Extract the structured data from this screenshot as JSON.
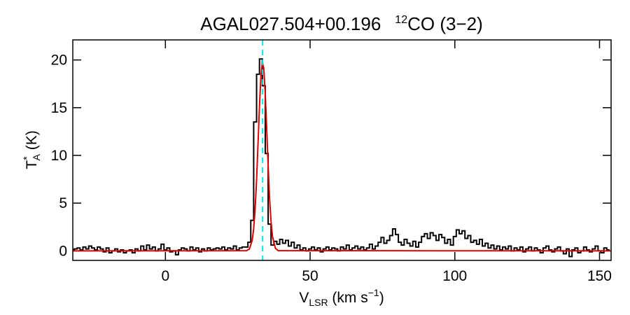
{
  "chart_data": {
    "type": "step",
    "title": {
      "source": "AGAL027.504+00.196",
      "line_sup": "12",
      "line": "CO (3−2)"
    },
    "xlabel": {
      "main": "V",
      "sub": "LSR",
      "unit": " (km s",
      "sup": "−1",
      "close": ")"
    },
    "ylabel": {
      "main": "T",
      "sup": "*",
      "sub": "A",
      "unit": " (K)"
    },
    "xlim": [
      -32,
      154
    ],
    "ylim": [
      -1,
      22.1
    ],
    "xticks": [
      0,
      50,
      100,
      150
    ],
    "yticks": [
      0,
      5,
      10,
      15,
      20
    ],
    "vline": {
      "x": 33.6,
      "color": "#00e5e5"
    },
    "series": [
      {
        "color": "#000000",
        "x": [
          -32,
          -31,
          -30,
          -29,
          -28,
          -27,
          -26,
          -25,
          -24,
          -23,
          -22,
          -21,
          -20,
          -19,
          -18,
          -17,
          -16,
          -15,
          -14,
          -13,
          -12,
          -11,
          -10,
          -9,
          -8,
          -7,
          -6,
          -5,
          -4,
          -3,
          -2,
          -1,
          0,
          1,
          2,
          3,
          4,
          5,
          6,
          7,
          8,
          9,
          10,
          11,
          12,
          13,
          14,
          15,
          16,
          17,
          18,
          19,
          20,
          21,
          22,
          23,
          24,
          25,
          26,
          27,
          28,
          29,
          30,
          31,
          32,
          33,
          34,
          35,
          36,
          37,
          38,
          39,
          40,
          41,
          42,
          43,
          44,
          45,
          46,
          47,
          48,
          49,
          50,
          51,
          52,
          53,
          54,
          55,
          56,
          57,
          58,
          59,
          60,
          61,
          62,
          63,
          64,
          65,
          66,
          67,
          68,
          69,
          70,
          71,
          72,
          73,
          74,
          75,
          76,
          77,
          78,
          79,
          80,
          81,
          82,
          83,
          84,
          85,
          86,
          87,
          88,
          89,
          90,
          91,
          92,
          93,
          94,
          95,
          96,
          97,
          98,
          99,
          100,
          101,
          102,
          103,
          104,
          105,
          106,
          107,
          108,
          109,
          110,
          111,
          112,
          113,
          114,
          115,
          116,
          117,
          118,
          119,
          120,
          121,
          122,
          123,
          124,
          125,
          126,
          127,
          128,
          129,
          130,
          131,
          132,
          133,
          134,
          135,
          136,
          137,
          138,
          139,
          140,
          141,
          142,
          143,
          144,
          145,
          146,
          147,
          148,
          149,
          150,
          151,
          152,
          153
        ],
        "values": [
          0.1,
          0.2,
          0.3,
          0.1,
          0.4,
          0.2,
          0.5,
          0.3,
          0.1,
          0.4,
          0.2,
          -0.1,
          0.3,
          -0.2,
          0.0,
          0.2,
          -0.1,
          0.1,
          -0.2,
          0.0,
          0.1,
          -0.2,
          0.2,
          0.0,
          0.5,
          0.1,
          0.6,
          0.2,
          0.4,
          0.0,
          0.2,
          0.7,
          0.1,
          0.3,
          -0.1,
          0.0,
          -0.4,
          0.1,
          0.3,
          0.2,
          0.0,
          0.4,
          0.1,
          0.3,
          -0.1,
          0.2,
          0.0,
          0.3,
          0.1,
          0.2,
          0.3,
          0.2,
          0.4,
          0.1,
          0.3,
          0.2,
          0.5,
          0.1,
          0.3,
          0.4,
          0.4,
          0.9,
          3.2,
          13.5,
          18.5,
          20.1,
          17.3,
          10.2,
          2.8,
          0.6,
          1.0,
          0.7,
          1.2,
          0.8,
          1.1,
          0.5,
          0.9,
          0.3,
          0.6,
          0.1,
          0.3,
          0.0,
          0.2,
          0.4,
          0.1,
          0.3,
          -0.1,
          0.2,
          0.4,
          0.1,
          0.3,
          0.2,
          0.0,
          0.4,
          0.2,
          0.6,
          0.1,
          0.3,
          0.5,
          0.2,
          0.4,
          0.1,
          0.3,
          0.7,
          0.2,
          0.5,
          0.9,
          1.4,
          0.8,
          1.1,
          1.6,
          2.3,
          1.7,
          0.9,
          0.6,
          1.2,
          0.8,
          0.5,
          1.0,
          0.4,
          0.9,
          1.5,
          1.8,
          1.3,
          1.9,
          1.6,
          1.1,
          1.7,
          1.4,
          0.8,
          1.2,
          0.6,
          1.5,
          2.2,
          1.8,
          2.1,
          1.3,
          1.6,
          0.9,
          1.1,
          0.7,
          1.2,
          0.5,
          0.8,
          0.3,
          0.6,
          0.2,
          0.5,
          0.1,
          0.4,
          0.2,
          0.5,
          0.0,
          0.3,
          0.1,
          0.4,
          -0.1,
          0.2,
          0.4,
          0.0,
          0.3,
          0.1,
          -0.2,
          0.3,
          0.5,
          0.1,
          -0.1,
          0.2,
          0.4,
          0.0,
          -0.3,
          0.2,
          -0.6,
          0.1,
          0.3,
          -0.2,
          0.0,
          0.4,
          0.1,
          -0.1,
          0.2,
          0.5,
          0.0,
          -0.2,
          0.3,
          0.1
        ]
      },
      {
        "color": "#e00000",
        "type": "line",
        "x": [
          -32,
          28,
          29,
          30,
          30.5,
          31,
          31.5,
          32,
          32.5,
          33,
          33.5,
          34,
          34.5,
          35,
          35.5,
          36,
          36.5,
          37,
          38,
          39,
          154
        ],
        "values": [
          0,
          0.02,
          0.18,
          1.1,
          2.3,
          4.4,
          7.4,
          11.2,
          15.1,
          18.3,
          19.8,
          19.1,
          16.5,
          12.8,
          8.9,
          5.5,
          3.1,
          1.5,
          0.27,
          0.02,
          0
        ]
      }
    ]
  }
}
